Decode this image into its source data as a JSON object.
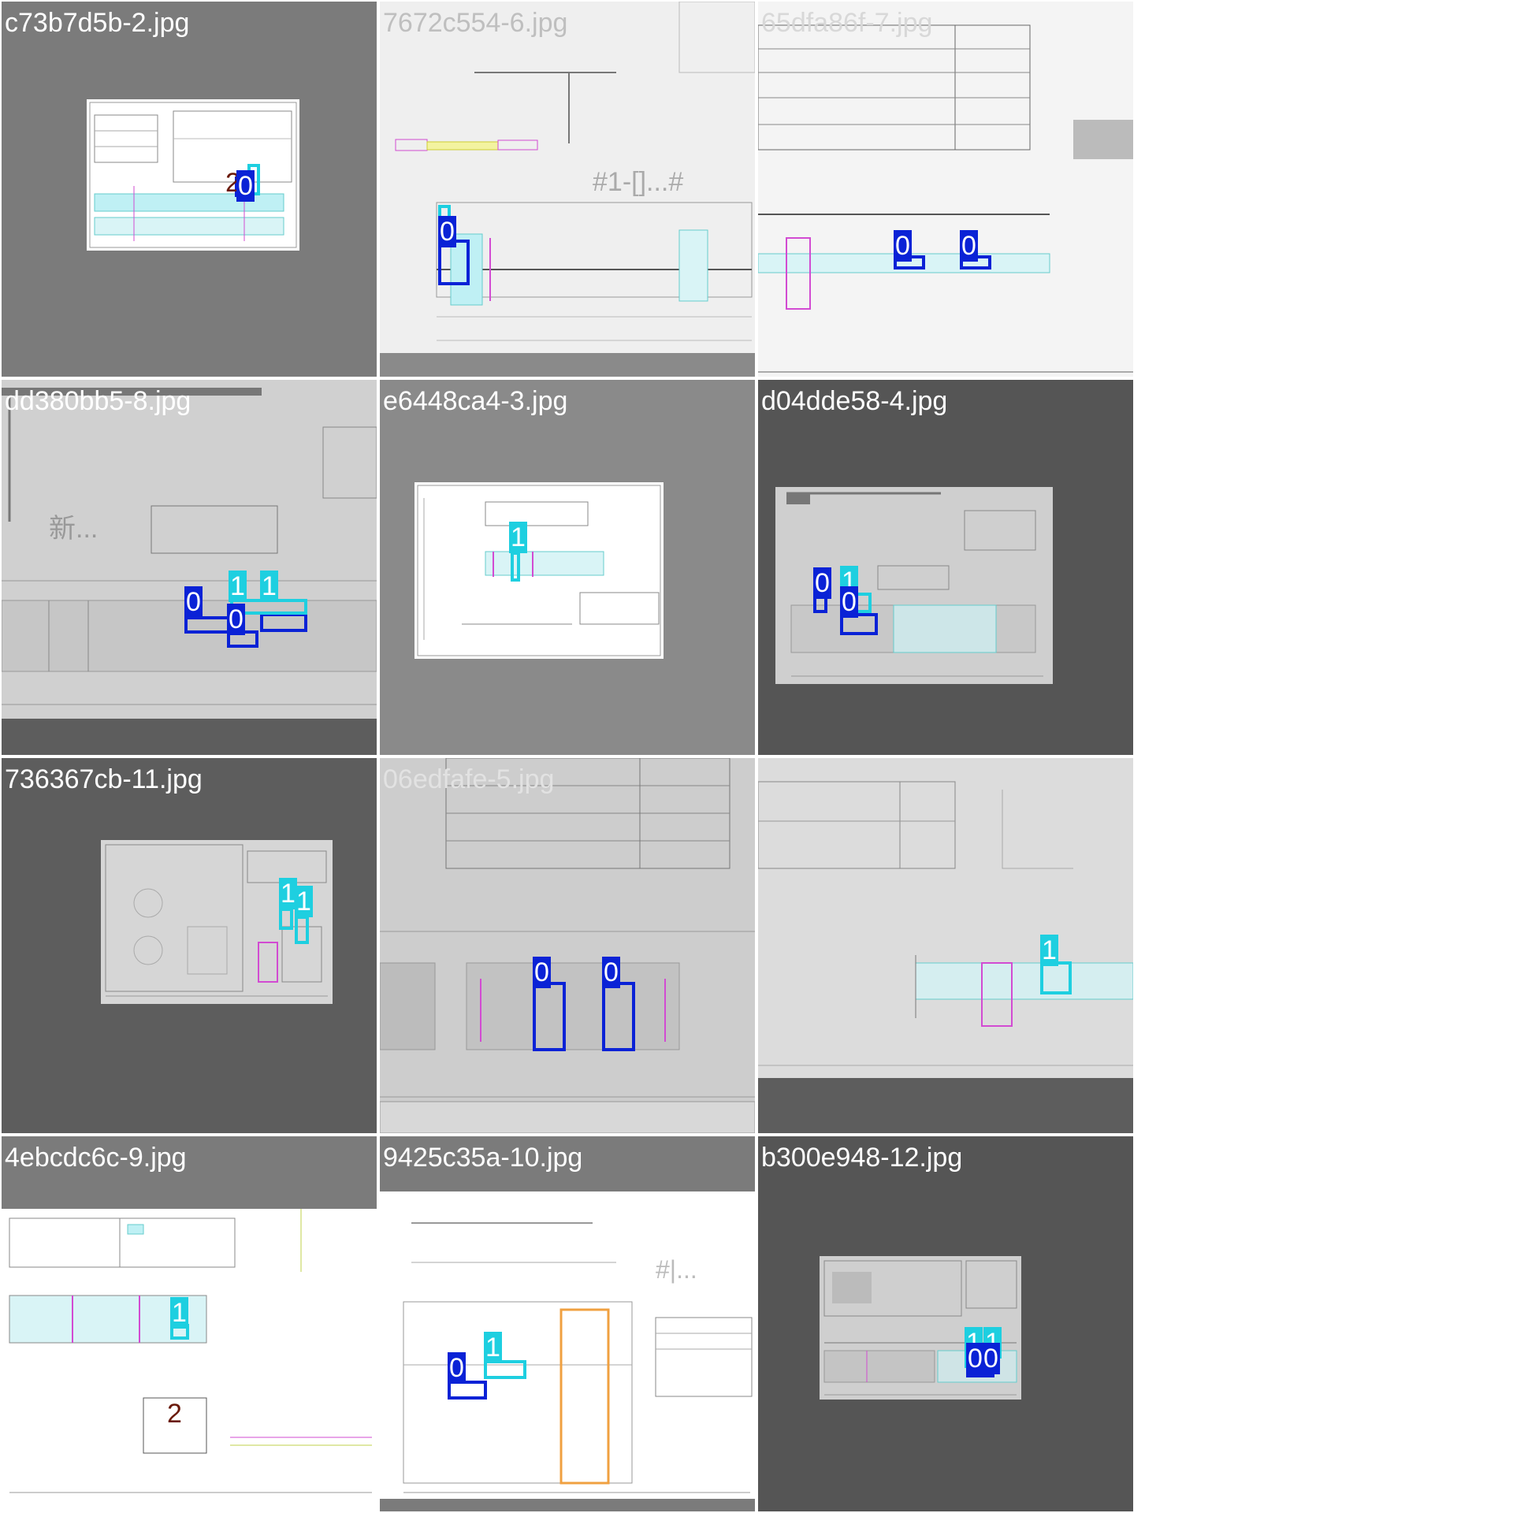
{
  "colors": {
    "class_0": "#0a22d6",
    "class_1": "#1ecfe0",
    "class_2": "#6a1a0a",
    "grid_bg": "#ffffff"
  },
  "tiles": [
    {
      "title": "c73b7d5b-2.jpg",
      "labels": [
        "2",
        "0"
      ]
    },
    {
      "title": "7672c554-6.jpg",
      "labels": [
        "0"
      ]
    },
    {
      "title": "65dfa86f-7.jpg",
      "labels": [
        "0",
        "0"
      ]
    },
    {
      "title": "dd380bb5-8.jpg",
      "labels": [
        "0",
        "1",
        "1",
        "0"
      ]
    },
    {
      "title": "e6448ca4-3.jpg",
      "labels": [
        "1"
      ]
    },
    {
      "title": "d04dde58-4.jpg",
      "labels": [
        "0",
        "1",
        "0"
      ]
    },
    {
      "title": "736367cb-11.jpg",
      "labels": [
        "1",
        "1"
      ]
    },
    {
      "title": "06edfafe-5.jpg",
      "labels": [
        "0",
        "0"
      ]
    },
    {
      "title": "",
      "labels": [
        "1"
      ]
    },
    {
      "title": "4ebcdc6c-9.jpg",
      "labels": [
        "1",
        "2"
      ]
    },
    {
      "title": "9425c35a-10.jpg",
      "labels": [
        "1",
        "0"
      ]
    },
    {
      "title": "b300e948-12.jpg",
      "labels": [
        "1",
        "1",
        "0",
        "0"
      ]
    }
  ]
}
